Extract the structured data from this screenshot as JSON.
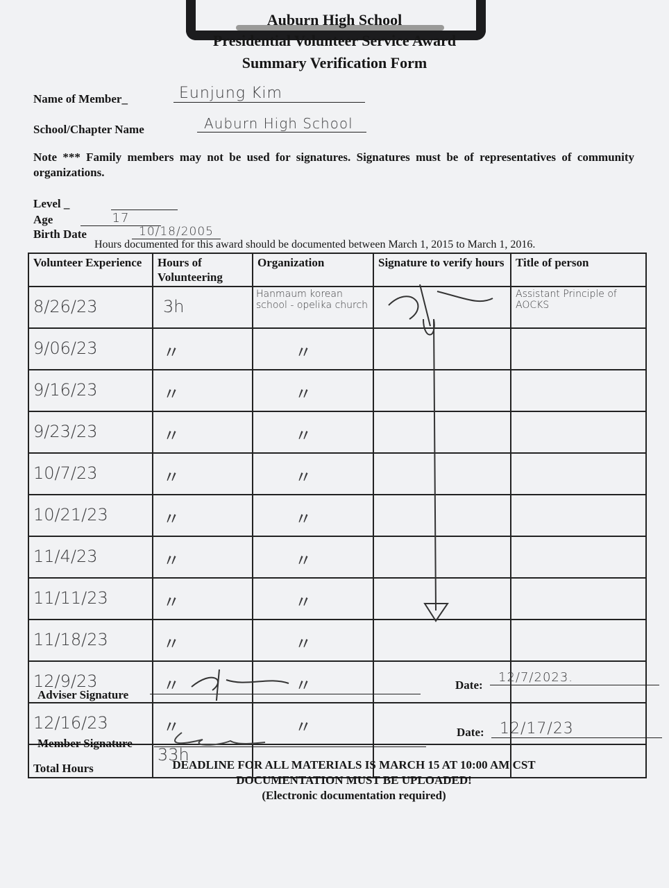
{
  "header": {
    "school": "Auburn High School",
    "award": "Presidential Volunteer Service Award",
    "form": "Summary Verification Form"
  },
  "fields": {
    "name_label": "Name of Member_",
    "name_value": "Eunjung Kim",
    "school_label": "School/Chapter Name",
    "school_value": "Auburn High School",
    "level_label": "Level _",
    "level_value": "",
    "age_label": "Age",
    "age_value": "17",
    "birth_label": "Birth Date",
    "birth_value": "10/18/2005"
  },
  "note": "Note *** Family members may not be used for signatures.  Signatures must be of representatives of community organizations.",
  "hours_note": "Hours documented for this award should be documented between March 1, 2015 to March 1, 2016.",
  "table": {
    "headers": [
      "Volunteer Experience",
      "Hours of Volunteering",
      "Organization",
      "Signature to verify hours",
      "Title of person"
    ],
    "rows": [
      [
        "8/26/23",
        "3h",
        "Hanmaum korean school - opelika church",
        "[signature]",
        "Assistant Principle of AOCKS"
      ],
      [
        "9/06/23",
        "〃",
        "〃",
        "",
        ""
      ],
      [
        "9/16/23",
        "〃",
        "〃",
        "",
        ""
      ],
      [
        "9/23/23",
        "〃",
        "〃",
        "",
        ""
      ],
      [
        "10/7/23",
        "〃",
        "〃",
        "",
        ""
      ],
      [
        "10/21/23",
        "〃",
        "〃",
        "",
        ""
      ],
      [
        "11/4/23",
        "〃",
        "〃",
        "",
        ""
      ],
      [
        "11/11/23",
        "〃",
        "〃",
        "",
        ""
      ],
      [
        "11/18/23",
        "〃",
        "〃",
        "",
        ""
      ],
      [
        "12/9/23",
        "〃",
        "〃",
        "",
        ""
      ],
      [
        "12/16/23",
        "〃",
        "〃",
        "",
        ""
      ]
    ],
    "total_label": "Total Hours",
    "total_value": "33h"
  },
  "signatures": {
    "adviser_label": "Adviser Signature",
    "adviser_date_label": "Date:",
    "adviser_date": "12/7/2023.",
    "member_label": "Member Signature",
    "member_date_label": "Date:",
    "member_date": "12/17/23"
  },
  "footer": {
    "line1": "DEADLINE FOR ALL MATERIALS IS MARCH 15 AT 10:00 AM CST",
    "line2": "DOCUMENTATION MUST BE UPLOADED!",
    "line3": "(Electronic documentation required)"
  }
}
